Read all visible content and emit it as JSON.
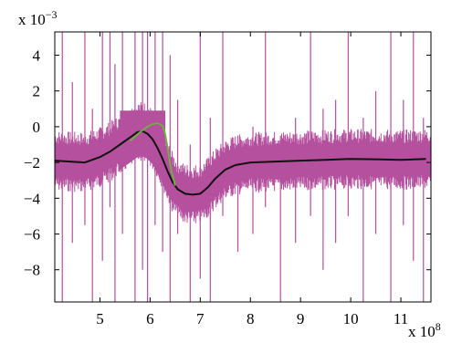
{
  "chart_data": {
    "type": "line",
    "title": "",
    "xlabel": "",
    "ylabel": "",
    "x_multiplier": {
      "base": "x 10",
      "exponent": "8"
    },
    "y_multiplier": {
      "base": "x 10",
      "exponent": "−3"
    },
    "xlim": [
      4.1,
      11.6
    ],
    "ylim": [
      -9.8,
      5.3
    ],
    "x_ticks": [
      5,
      6,
      7,
      8,
      9,
      10,
      11
    ],
    "x_tick_labels": [
      "5",
      "6",
      "7",
      "8",
      "9",
      "10",
      "11"
    ],
    "y_ticks": [
      4,
      2,
      0,
      -2,
      -4,
      -6,
      -8
    ],
    "y_tick_labels": [
      "4",
      "2",
      "0",
      "−2",
      "−4",
      "−6",
      "−8"
    ],
    "grid": false,
    "colors": {
      "noisy": "#b5509e",
      "smoothed": "#111111",
      "model": "#6db33f"
    },
    "series": [
      {
        "id": "smoothed",
        "x": [
          4.1,
          4.4,
          4.7,
          5.0,
          5.2,
          5.4,
          5.6,
          5.75,
          5.85,
          5.95,
          6.05,
          6.15,
          6.25,
          6.35,
          6.45,
          6.55,
          6.7,
          6.85,
          7.0,
          7.15,
          7.3,
          7.5,
          7.7,
          8.0,
          8.5,
          9.0,
          9.5,
          10.0,
          10.5,
          11.0,
          11.5
        ],
        "values": [
          -1.9,
          -1.95,
          -2.0,
          -1.7,
          -1.4,
          -1.0,
          -0.6,
          -0.3,
          -0.25,
          -0.4,
          -0.7,
          -1.2,
          -1.8,
          -2.5,
          -3.1,
          -3.5,
          -3.75,
          -3.8,
          -3.75,
          -3.4,
          -2.9,
          -2.4,
          -2.15,
          -2.0,
          -1.95,
          -1.9,
          -1.85,
          -1.8,
          -1.82,
          -1.85,
          -1.8
        ]
      },
      {
        "id": "model",
        "x": [
          5.6,
          5.8,
          5.95,
          6.05,
          6.15,
          6.25,
          6.3,
          6.35,
          6.42,
          6.5
        ],
        "values": [
          -0.8,
          -0.3,
          0.0,
          0.15,
          0.2,
          0.05,
          -0.4,
          -1.2,
          -2.4,
          -3.3
        ]
      }
    ],
    "noise": {
      "id": "noisy",
      "description_hidden": false,
      "band_halfwidth": 1.3,
      "spikes": [
        {
          "x": 4.25,
          "lo": -9.8,
          "hi": 5.3
        },
        {
          "x": 4.45,
          "lo": -6.5,
          "hi": 2.5
        },
        {
          "x": 4.7,
          "lo": -5.5,
          "hi": 5.3
        },
        {
          "x": 4.85,
          "lo": -9.8,
          "hi": 1.0
        },
        {
          "x": 5.05,
          "lo": -7.5,
          "hi": 5.3
        },
        {
          "x": 5.2,
          "lo": -4.5,
          "hi": 5.3
        },
        {
          "x": 5.3,
          "lo": -9.8,
          "hi": 3.5
        },
        {
          "x": 5.45,
          "lo": -6.0,
          "hi": 5.3
        },
        {
          "x": 5.7,
          "lo": -9.8,
          "hi": 5.3
        },
        {
          "x": 5.85,
          "lo": -8.0,
          "hi": 5.3
        },
        {
          "x": 5.95,
          "lo": -9.8,
          "hi": 5.3
        },
        {
          "x": 6.1,
          "lo": -5.5,
          "hi": 5.3
        },
        {
          "x": 6.25,
          "lo": -7.0,
          "hi": 5.3
        },
        {
          "x": 6.4,
          "lo": -9.8,
          "hi": 4.0
        },
        {
          "x": 6.55,
          "lo": -6.0,
          "hi": 1.5
        },
        {
          "x": 6.8,
          "lo": -9.8,
          "hi": -1.0
        },
        {
          "x": 7.0,
          "lo": -8.5,
          "hi": 5.3
        },
        {
          "x": 7.2,
          "lo": -9.8,
          "hi": 0.5
        },
        {
          "x": 7.45,
          "lo": -5.0,
          "hi": 5.3
        },
        {
          "x": 7.75,
          "lo": -7.0,
          "hi": -0.5
        },
        {
          "x": 8.05,
          "lo": -6.0,
          "hi": 0.0
        },
        {
          "x": 8.3,
          "lo": -4.5,
          "hi": 5.3
        },
        {
          "x": 8.6,
          "lo": -9.8,
          "hi": -0.5
        },
        {
          "x": 8.9,
          "lo": -6.5,
          "hi": 0.5
        },
        {
          "x": 9.2,
          "lo": -5.0,
          "hi": 5.3
        },
        {
          "x": 9.45,
          "lo": -8.0,
          "hi": 1.0
        },
        {
          "x": 9.7,
          "lo": -6.5,
          "hi": 1.5
        },
        {
          "x": 9.95,
          "lo": -5.0,
          "hi": 5.3
        },
        {
          "x": 10.25,
          "lo": -9.8,
          "hi": 0.5
        },
        {
          "x": 10.5,
          "lo": -6.0,
          "hi": 2.0
        },
        {
          "x": 10.8,
          "lo": -9.8,
          "hi": 5.3
        },
        {
          "x": 11.05,
          "lo": -5.5,
          "hi": 1.5
        },
        {
          "x": 11.25,
          "lo": -7.5,
          "hi": 5.3
        },
        {
          "x": 11.45,
          "lo": -9.8,
          "hi": 0.5
        }
      ]
    }
  }
}
